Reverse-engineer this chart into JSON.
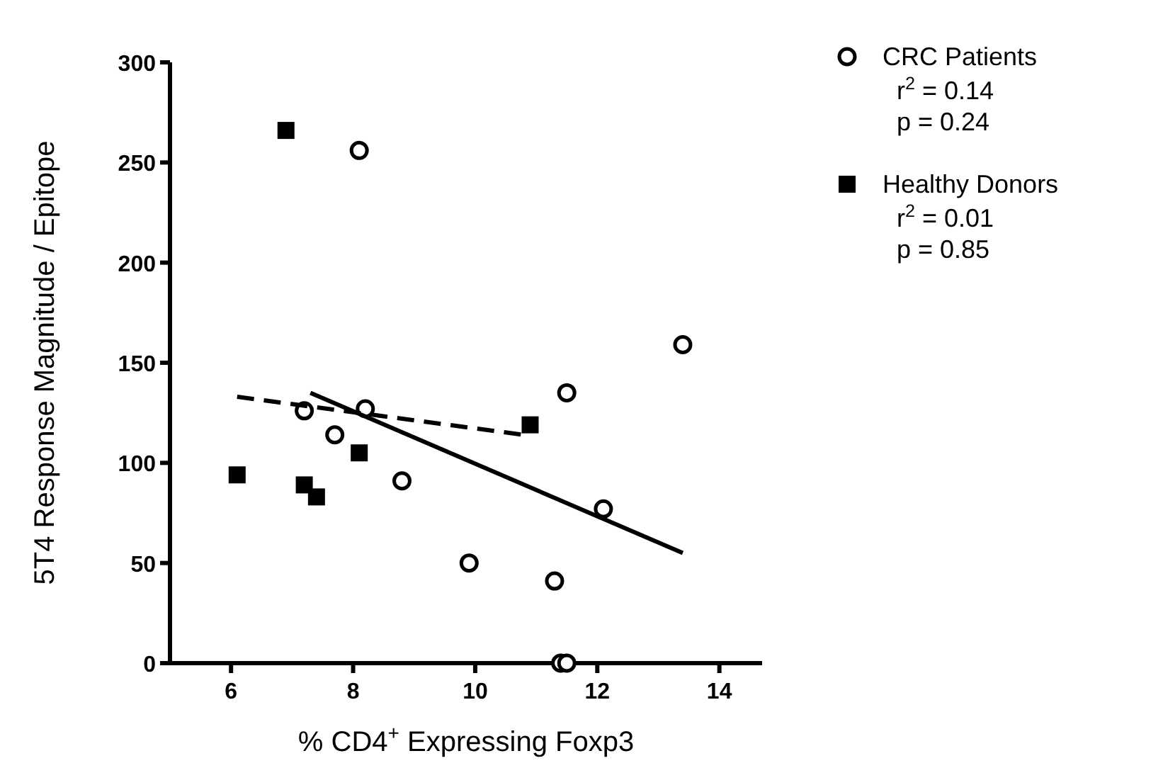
{
  "chart_data": {
    "type": "scatter",
    "xlabel": "% CD4$^{+}$ Expressing Foxp3",
    "ylabel": "5T4 Response Magnitude / Epitope",
    "xlim": [
      5,
      14.7
    ],
    "xticks": [
      6,
      8,
      10,
      12,
      14
    ],
    "ylim": [
      0,
      300
    ],
    "yticks": [
      0,
      50,
      100,
      150,
      200,
      250,
      300
    ],
    "grid": false,
    "legend": "right",
    "series": [
      {
        "name": "CRC Patients",
        "color": "#000000",
        "marker": "circle",
        "x": [
          8.1,
          7.2,
          7.7,
          8.2,
          8.8,
          9.9,
          11.3,
          11.5,
          12.1,
          13.4,
          11.4,
          11.5
        ],
        "values": [
          256,
          126,
          114,
          127,
          91,
          50,
          41,
          135,
          77,
          159,
          0,
          0
        ]
      },
      {
        "name": "Healthy Donors",
        "color": "#000000",
        "marker": "square",
        "x": [
          6.9,
          6.1,
          7.2,
          7.4,
          8.1,
          10.9
        ],
        "values": [
          266,
          94,
          89,
          83,
          105,
          119
        ]
      },
      {
        "type": "line",
        "color": "#000000",
        "line_style": "solid",
        "x": [
          7.3,
          13.4
        ],
        "values": [
          135,
          55
        ]
      },
      {
        "type": "line",
        "color": "#000000",
        "line_style": "dashed",
        "x": [
          6.1,
          10.8
        ],
        "values": [
          133,
          114
        ]
      }
    ],
    "annotations": [
      "r$^{2}$ = 0.14",
      "p = 0.24",
      "r$^{2}$ = 0.01",
      "p = 0.85"
    ]
  }
}
